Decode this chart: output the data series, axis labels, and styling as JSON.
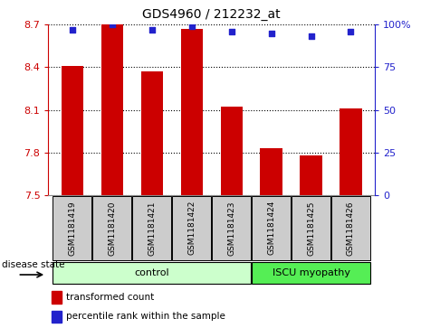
{
  "title": "GDS4960 / 212232_at",
  "samples": [
    "GSM1181419",
    "GSM1181420",
    "GSM1181421",
    "GSM1181422",
    "GSM1181423",
    "GSM1181424",
    "GSM1181425",
    "GSM1181426"
  ],
  "bar_values": [
    8.41,
    8.7,
    8.37,
    8.67,
    8.12,
    7.83,
    7.78,
    8.11
  ],
  "percentile_values": [
    97,
    100,
    97,
    99,
    96,
    95,
    93,
    96
  ],
  "ylim_left": [
    7.5,
    8.7
  ],
  "ylim_right": [
    0,
    100
  ],
  "yticks_left": [
    7.5,
    7.8,
    8.1,
    8.4,
    8.7
  ],
  "yticks_right": [
    0,
    25,
    50,
    75,
    100
  ],
  "bar_color": "#cc0000",
  "dot_color": "#2222cc",
  "bar_width": 0.55,
  "n_control": 5,
  "n_iscu": 3,
  "control_label": "control",
  "iscu_label": "ISCU myopathy",
  "disease_state_label": "disease state",
  "legend_bar_label": "transformed count",
  "legend_dot_label": "percentile rank within the sample",
  "control_color": "#ccffcc",
  "iscu_color": "#55ee55",
  "label_area_color": "#cccccc",
  "background_color": "#ffffff",
  "left_axis_color": "#cc0000",
  "right_axis_color": "#2222cc",
  "spine_color": "#888888"
}
